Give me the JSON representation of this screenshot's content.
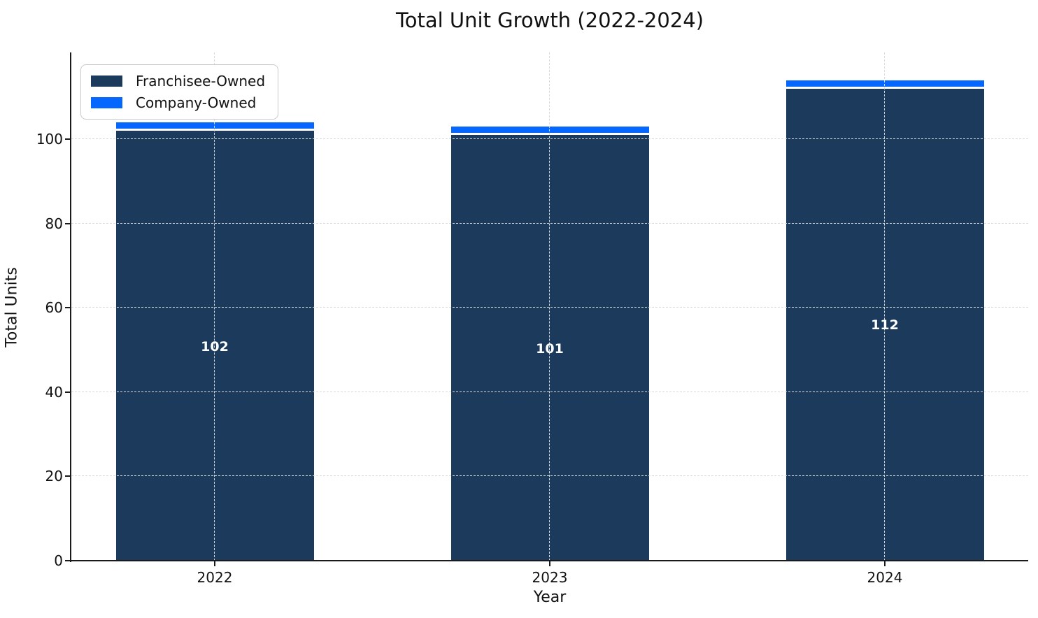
{
  "chart_data": {
    "type": "bar",
    "stacked": true,
    "title": "Total Unit Growth (2022-2024)",
    "xlabel": "Year",
    "ylabel": "Total Units",
    "categories": [
      "2022",
      "2023",
      "2024"
    ],
    "series": [
      {
        "name": "Franchisee-Owned",
        "color": "#1B3A5C",
        "values": [
          102,
          101,
          112
        ]
      },
      {
        "name": "Company-Owned",
        "color": "#0667FF",
        "values": [
          2,
          2,
          2
        ]
      }
    ],
    "bar_labels": [
      "102",
      "101",
      "112"
    ],
    "yticks": [
      0,
      20,
      40,
      60,
      80,
      100
    ],
    "ylim": [
      0,
      120.6
    ],
    "grid": {
      "visible": true,
      "style": "dashed",
      "axes": "both",
      "color": "#d8dbde",
      "above_bars": true
    },
    "legend": {
      "position": "upper-left"
    },
    "segment_edge_color": "#ffffff"
  }
}
